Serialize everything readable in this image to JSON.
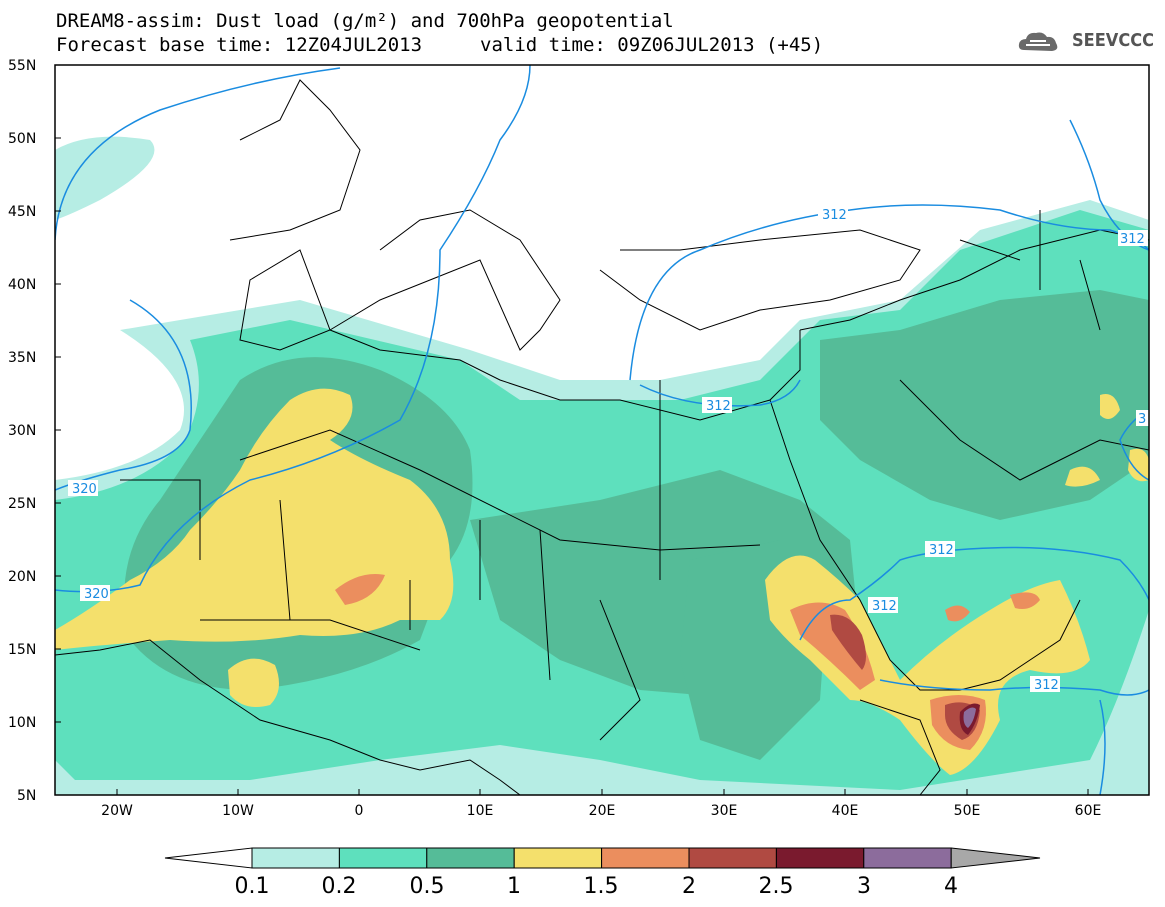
{
  "header": {
    "title_line1": "DREAM8-assim: Dust load (g/m²) and 700hPa geopotential",
    "title_line2": "Forecast base time: 12Z04JUL2013",
    "valid_time": "valid time: 09Z06JUL2013 (+45)",
    "logo_text": "SEEVCCC"
  },
  "map": {
    "lat_labels": [
      "55N",
      "50N",
      "45N",
      "40N",
      "35N",
      "30N",
      "25N",
      "20N",
      "15N",
      "10N",
      "5N"
    ],
    "lon_labels": [
      "20W",
      "10W",
      "0",
      "10E",
      "20E",
      "30E",
      "40E",
      "50E",
      "60E"
    ],
    "contour_labels": [
      "312",
      "312",
      "312",
      "312",
      "312",
      "320",
      "320",
      "312",
      "3"
    ]
  },
  "colorbar": {
    "labels": [
      "0.1",
      "0.2",
      "0.5",
      "1",
      "1.5",
      "2",
      "2.5",
      "3",
      "4"
    ],
    "colors": [
      "#ffffff",
      "#b6ede4",
      "#5ee0bd",
      "#55bc98",
      "#f4e06c",
      "#eb8e5e",
      "#b04a42",
      "#7a1a2e",
      "#8c6c9c",
      "#a8a8a8"
    ]
  }
}
